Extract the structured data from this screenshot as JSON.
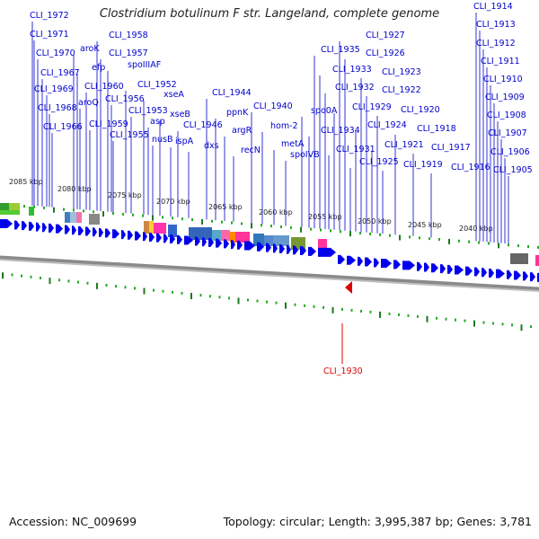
{
  "map": {
    "title": "Clostridium botulinum F str. Langeland, complete genome",
    "accession": "Accession: NC_009699",
    "summary": "Topology: circular; Length: 3,995,387 bp; Genes: 3,781",
    "colors": {
      "label": "#0000cc",
      "highlight": "#dd0000",
      "gene_arrow": "#0000ee",
      "backbone": "#999999",
      "tick": "#22aa22",
      "tick_dark": "#1d7a1d"
    }
  },
  "kbp_labels": [
    "2085 kbp",
    "2080 kbp",
    "2075 kbp",
    "2070 kbp",
    "2065 kbp",
    "2060 kbp",
    "2055 kbp",
    "2050 kbp",
    "2045 kbp",
    "2040 kbp"
  ],
  "gene_labels": [
    "CLI_1972",
    "CLI_1971",
    "CLI_1970",
    "CLI_1967",
    "CLI_1969",
    "CLI_1968",
    "CLI_1966",
    "aroK",
    "efp",
    "aroQ",
    "CLI_1960",
    "CLI_1959",
    "CLI_1958",
    "CLI_1957",
    "spoIIIAF",
    "CLI_1956",
    "CLI_1955",
    "CLI_1952",
    "CLI_1953",
    "xseA",
    "asp",
    "nusB",
    "xseB",
    "ispA",
    "CLI_1946",
    "dxs",
    "CLI_1944",
    "ppnK",
    "argR",
    "recN",
    "CLI_1940",
    "hom-2",
    "metA",
    "spoIVB",
    "spo0A",
    "CLI_1934",
    "CLI_1935",
    "CLI_1933",
    "CLI_1932",
    "CLI_1931",
    "CLI_1929",
    "CLI_1927",
    "CLI_1926",
    "CLI_1925",
    "CLI_1924",
    "CLI_1923",
    "CLI_1922",
    "CLI_1921",
    "CLI_1920",
    "CLI_1919",
    "CLI_1918",
    "CLI_1917",
    "CLI_1916",
    "CLI_1914",
    "CLI_1913",
    "CLI_1912",
    "CLI_1911",
    "CLI_1910",
    "CLI_1909",
    "CLI_1908",
    "CLI_1907",
    "CLI_1906",
    "CLI_1905"
  ],
  "highlight_label": "CLI_1930"
}
